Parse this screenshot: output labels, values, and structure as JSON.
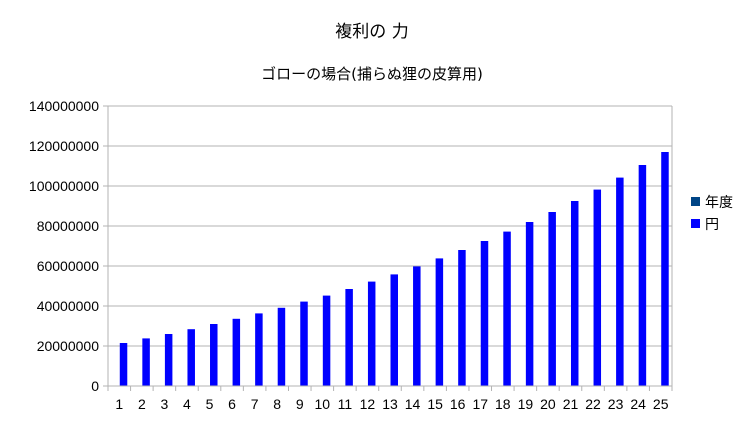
{
  "chart_data": {
    "type": "bar",
    "title": "複利の 力",
    "subtitle": "ゴローの場合(捕らぬ狸の皮算用)",
    "categories": [
      "1",
      "2",
      "3",
      "4",
      "5",
      "6",
      "7",
      "8",
      "9",
      "10",
      "11",
      "12",
      "13",
      "14",
      "15",
      "16",
      "17",
      "18",
      "19",
      "20",
      "21",
      "22",
      "23",
      "24",
      "25"
    ],
    "series": [
      {
        "name": "年度",
        "color": "#004586",
        "values": [
          1,
          2,
          3,
          4,
          5,
          6,
          7,
          8,
          9,
          10,
          11,
          12,
          13,
          14,
          15,
          16,
          17,
          18,
          19,
          20,
          21,
          22,
          23,
          24,
          25
        ]
      },
      {
        "name": "円",
        "color": "#0000ff",
        "values": [
          21500000,
          23800000,
          26000000,
          28400000,
          31000000,
          33600000,
          36300000,
          39100000,
          42200000,
          45200000,
          48500000,
          52200000,
          55800000,
          59800000,
          63800000,
          68000000,
          72500000,
          77200000,
          82000000,
          87000000,
          92500000,
          98200000,
          104200000,
          110500000,
          117000000
        ]
      }
    ],
    "y_ticks": [
      "0",
      "20000000",
      "40000000",
      "60000000",
      "80000000",
      "100000000",
      "120000000",
      "140000000"
    ],
    "ylim": [
      0,
      140000000
    ],
    "grid": true,
    "legend_position": "right"
  }
}
